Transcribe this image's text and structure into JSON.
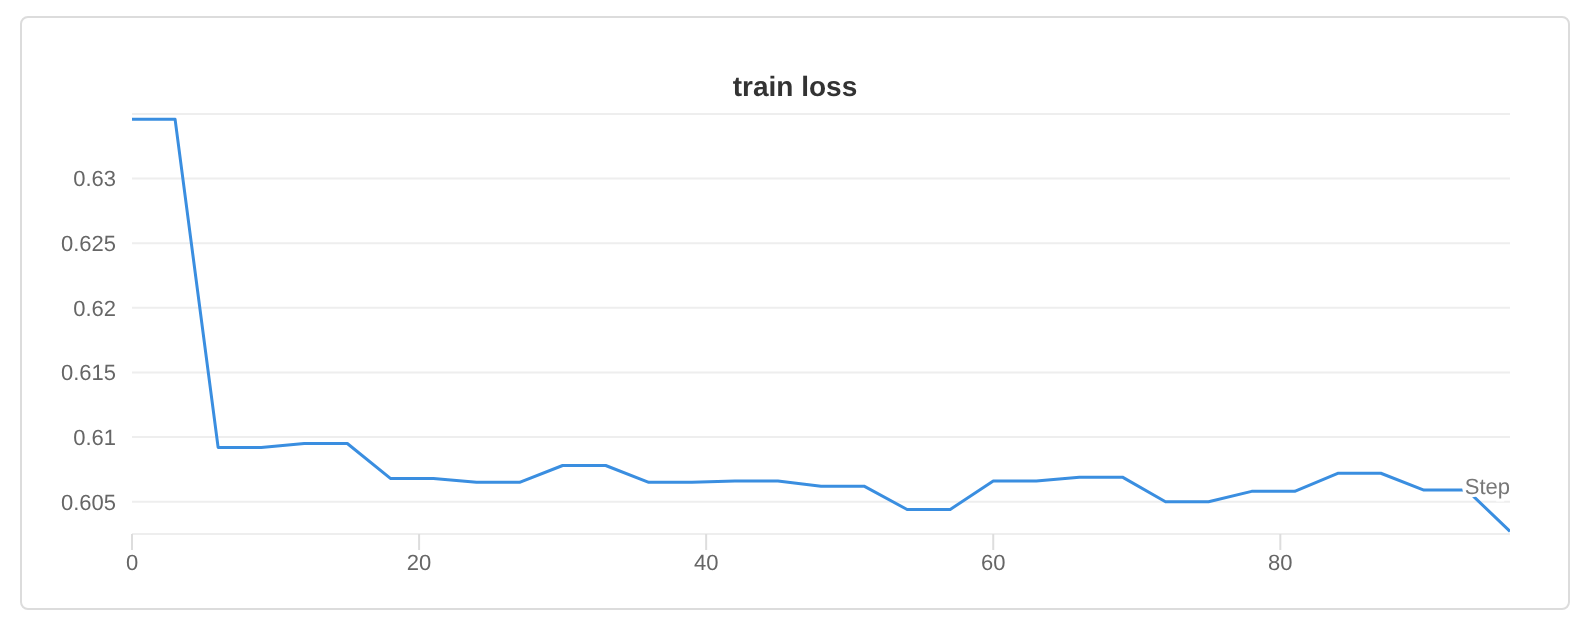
{
  "chart_data": {
    "type": "line",
    "title": "train loss",
    "xlabel": "Step",
    "x": [
      0,
      3,
      6,
      9,
      12,
      15,
      18,
      21,
      24,
      27,
      30,
      33,
      36,
      39,
      42,
      45,
      48,
      51,
      54,
      57,
      60,
      63,
      66,
      69,
      72,
      75,
      78,
      81,
      84,
      87,
      90,
      93,
      96
    ],
    "series": [
      {
        "color": "#3a8ee0",
        "values": [
          0.6346,
          0.6346,
          0.6092,
          0.6092,
          0.6095,
          0.6095,
          0.6068,
          0.6068,
          0.6065,
          0.6065,
          0.6078,
          0.6078,
          0.6065,
          0.6065,
          0.6066,
          0.6066,
          0.6062,
          0.6062,
          0.6044,
          0.6044,
          0.6066,
          0.6066,
          0.6069,
          0.6069,
          0.605,
          0.605,
          0.6058,
          0.6058,
          0.6072,
          0.6072,
          0.6059,
          0.6059,
          0.6027
        ]
      }
    ],
    "xlim": [
      0,
      96
    ],
    "xticks": [
      0,
      20,
      40,
      60,
      80
    ],
    "ylim": [
      0.6025,
      0.635
    ],
    "yticks": [
      0.605,
      0.61,
      0.615,
      0.62,
      0.625,
      0.63
    ],
    "grid": "y",
    "legend": false
  }
}
